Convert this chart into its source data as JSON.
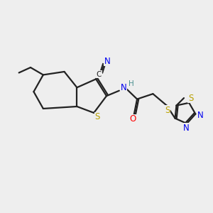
{
  "bg_color": "#eeeeee",
  "bond_color": "#222222",
  "colors": {
    "S": "#b8a000",
    "N": "#0000ee",
    "O": "#ff0000",
    "H": "#4a9090",
    "C": "#222222"
  }
}
